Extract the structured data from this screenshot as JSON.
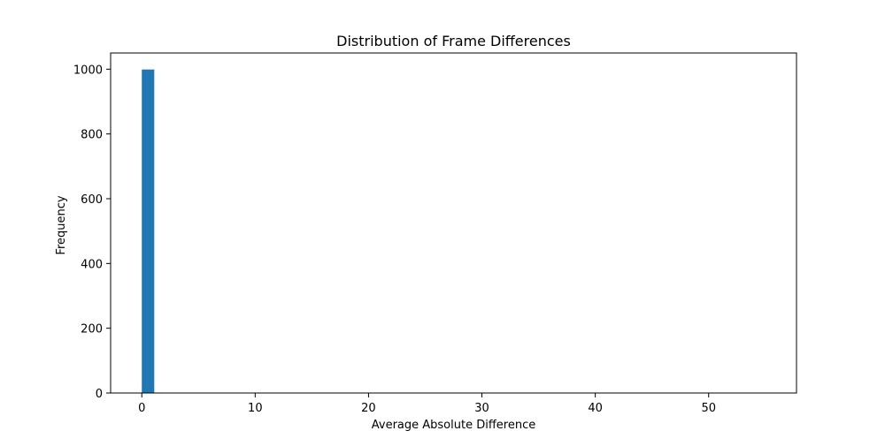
{
  "chart_data": {
    "type": "bar",
    "title": "Distribution of Frame Differences",
    "xlabel": "Average Absolute Difference",
    "ylabel": "Frequency",
    "xlim": [
      -2.75,
      57.75
    ],
    "ylim": [
      0,
      1050
    ],
    "x_ticks": [
      0,
      10,
      20,
      30,
      40,
      50
    ],
    "y_ticks": [
      0,
      200,
      400,
      600,
      800,
      1000
    ],
    "bins": [
      {
        "x0": 0.0,
        "x1": 1.1,
        "count": 999
      }
    ],
    "bar_color": "#1f77b4",
    "grid": false,
    "legend": "none"
  }
}
